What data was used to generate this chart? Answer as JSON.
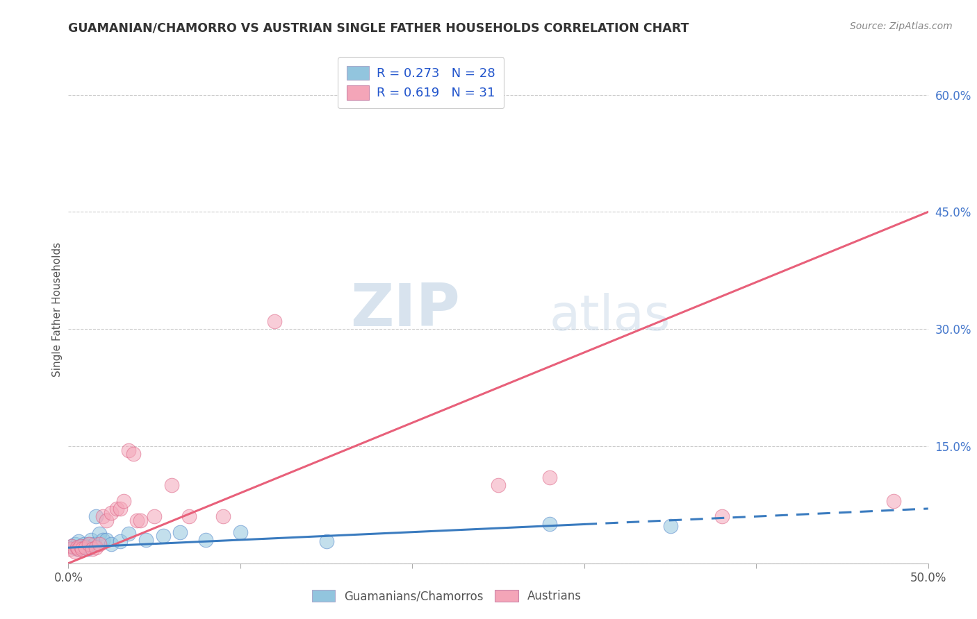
{
  "title": "GUAMANIAN/CHAMORRO VS AUSTRIAN SINGLE FATHER HOUSEHOLDS CORRELATION CHART",
  "source": "Source: ZipAtlas.com",
  "ylabel": "Single Father Households",
  "xlim": [
    0.0,
    0.5
  ],
  "ylim": [
    0.0,
    0.65
  ],
  "x_ticks": [
    0.0,
    0.1,
    0.2,
    0.3,
    0.4,
    0.5
  ],
  "x_tick_labels": [
    "0.0%",
    "",
    "",
    "",
    "",
    "50.0%"
  ],
  "y_ticks_right": [
    0.0,
    0.15,
    0.3,
    0.45,
    0.6
  ],
  "y_tick_labels_right": [
    "",
    "15.0%",
    "30.0%",
    "45.0%",
    "60.0%"
  ],
  "legend_labels": [
    "Guamanians/Chamorros",
    "Austrians"
  ],
  "color_blue": "#92c5de",
  "color_pink": "#f4a5b8",
  "color_line_blue": "#3a7bbf",
  "color_line_pink": "#e8607a",
  "background_color": "#ffffff",
  "watermark_zip": "ZIP",
  "watermark_atlas": "atlas",
  "guam_x": [
    0.002,
    0.003,
    0.004,
    0.005,
    0.006,
    0.007,
    0.008,
    0.009,
    0.01,
    0.011,
    0.012,
    0.013,
    0.015,
    0.016,
    0.018,
    0.02,
    0.022,
    0.025,
    0.03,
    0.035,
    0.045,
    0.055,
    0.065,
    0.08,
    0.1,
    0.15,
    0.28,
    0.35
  ],
  "guam_y": [
    0.022,
    0.02,
    0.025,
    0.018,
    0.028,
    0.022,
    0.02,
    0.025,
    0.022,
    0.018,
    0.025,
    0.03,
    0.025,
    0.06,
    0.038,
    0.03,
    0.03,
    0.025,
    0.028,
    0.038,
    0.03,
    0.035,
    0.04,
    0.03,
    0.04,
    0.028,
    0.05,
    0.048
  ],
  "aust_x": [
    0.001,
    0.002,
    0.004,
    0.005,
    0.006,
    0.007,
    0.008,
    0.01,
    0.012,
    0.014,
    0.016,
    0.018,
    0.02,
    0.022,
    0.025,
    0.028,
    0.03,
    0.032,
    0.035,
    0.038,
    0.04,
    0.042,
    0.05,
    0.06,
    0.07,
    0.09,
    0.12,
    0.25,
    0.28,
    0.38,
    0.48
  ],
  "aust_y": [
    0.018,
    0.022,
    0.015,
    0.02,
    0.018,
    0.022,
    0.018,
    0.02,
    0.025,
    0.018,
    0.02,
    0.025,
    0.06,
    0.055,
    0.065,
    0.07,
    0.07,
    0.08,
    0.145,
    0.14,
    0.055,
    0.055,
    0.06,
    0.1,
    0.06,
    0.06,
    0.31,
    0.1,
    0.11,
    0.06,
    0.08
  ],
  "blue_line_start_x": 0.0,
  "blue_line_end_solid_x": 0.3,
  "blue_line_end_x": 0.5,
  "pink_line_start_x": 0.0,
  "pink_line_end_x": 0.5
}
